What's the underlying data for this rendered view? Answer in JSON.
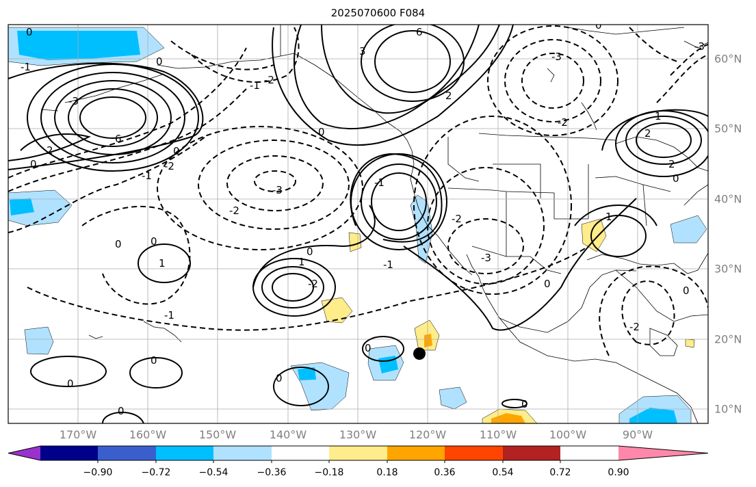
{
  "title": "2025070600 F084",
  "lon_labels": [
    "170°W",
    "160°W",
    "150°W",
    "140°W",
    "130°W",
    "120°W",
    "110°W",
    "100°W",
    "90°W"
  ],
  "lat_labels": [
    "60°N",
    "50°N",
    "40°N",
    "30°N",
    "20°N",
    "10°N"
  ],
  "colorbar": {
    "tick_labels": [
      "−0.90",
      "−0.72",
      "−0.54",
      "−0.36",
      "−0.18",
      "0.18",
      "0.36",
      "0.54",
      "0.72",
      "0.90"
    ],
    "colors": [
      "#9932cc",
      "#00008b",
      "#3a5fcd",
      "#00bfff",
      "#b0e2ff",
      "#ffffff",
      "#ffec8b",
      "#ffa500",
      "#ff4500",
      "#b22222",
      "#ff88aa"
    ]
  },
  "contour_labels": [
    "0",
    "-1",
    "-2",
    "-3",
    "1",
    "2",
    "3",
    "6",
    "0",
    "-1",
    "-2",
    "-3",
    "1",
    "2",
    "-2",
    "-3",
    "0",
    "1",
    "2",
    "-1",
    "0",
    "-1",
    "-2",
    "0",
    "0",
    "0",
    "0",
    "0",
    "1",
    "-3",
    "0",
    "-2",
    "0",
    "-2",
    "2",
    "1",
    "2",
    "2",
    "-1",
    "0",
    "2",
    "1",
    "-2"
  ],
  "colors": {
    "land_outline": "#000000",
    "grid": "#aaaaaa",
    "contour": "#000000",
    "storm_marker": "#000000"
  }
}
